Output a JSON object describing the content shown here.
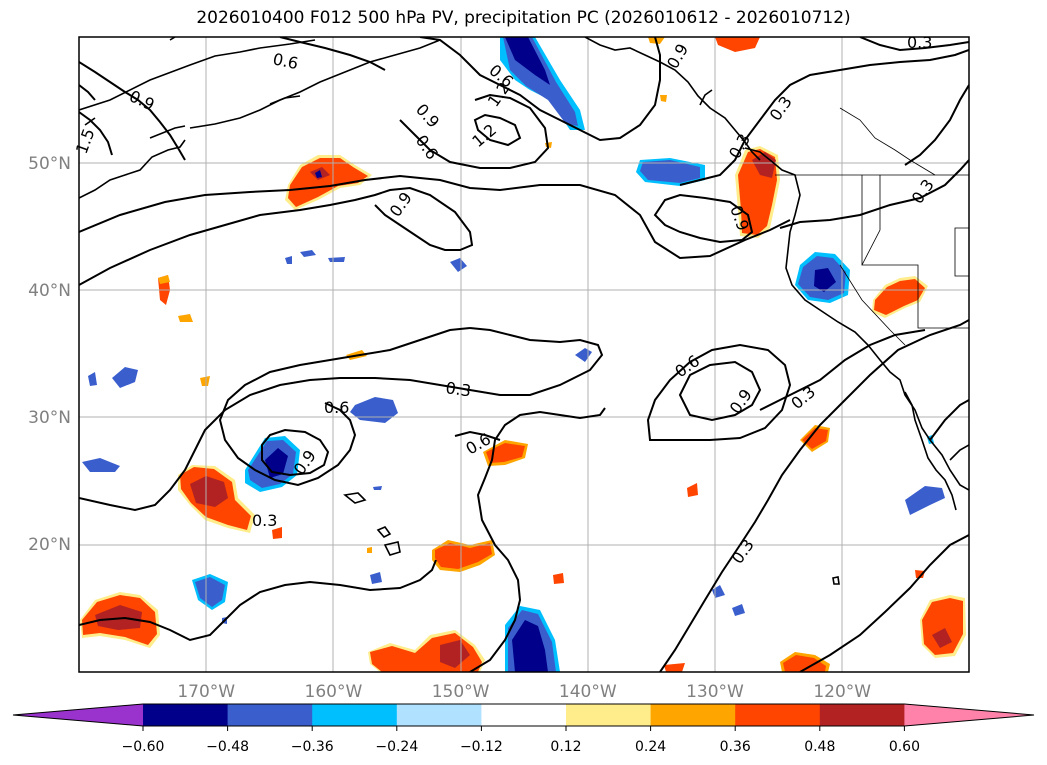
{
  "title": "2026010400 F012 500 hPa PV, precipitation PC (2026010612 - 2026010712)",
  "map": {
    "lat_labels": [
      {
        "text": "50°N",
        "lat": 50
      },
      {
        "text": "40°N",
        "lat": 40
      },
      {
        "text": "30°N",
        "lat": 30
      },
      {
        "text": "20°N",
        "lat": 20
      }
    ],
    "lon_labels": [
      {
        "text": "170°W",
        "lon": -170
      },
      {
        "text": "160°W",
        "lon": -160
      },
      {
        "text": "150°W",
        "lon": -150
      },
      {
        "text": "140°W",
        "lon": -140
      },
      {
        "text": "130°W",
        "lon": -130
      },
      {
        "text": "120°W",
        "lon": -120
      }
    ],
    "contour_labels": [
      "0.6",
      "0.9",
      "1.2",
      "1.5",
      "0.3",
      "0.6",
      "0.9",
      "0.6",
      "0.9",
      "0.3",
      "0.6",
      "0.9",
      "0.3",
      "0.6",
      "0.9",
      "0.3",
      "0.3",
      "0.3",
      "0.6",
      "0.9",
      "0.3",
      "0.3",
      "1.2",
      "0.9"
    ]
  },
  "colorbar": {
    "colors": [
      "#9a32cd",
      "#00008b",
      "#3a5fcd",
      "#00bfff",
      "#b0e2ff",
      "#ffffff",
      "#ffec8b",
      "#ffa500",
      "#ff4500",
      "#b22222",
      "#ff82ab"
    ],
    "ticks": [
      "−0.60",
      "−0.48",
      "−0.36",
      "−0.24",
      "−0.12",
      "0.12",
      "0.24",
      "0.36",
      "0.48",
      "0.60"
    ]
  }
}
